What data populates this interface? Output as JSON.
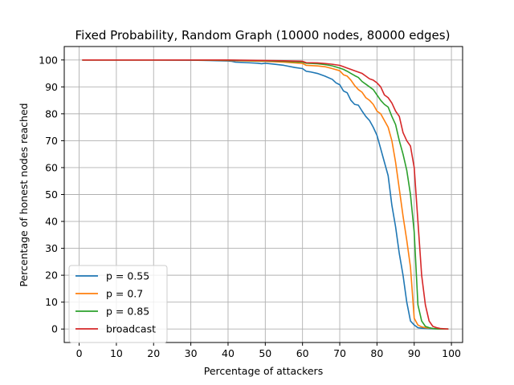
{
  "chart_data": {
    "type": "line",
    "title": "Fixed Probability, Random Graph (10000 nodes, 80000 edges)",
    "xlabel": "Percentage of attackers",
    "ylabel": "Percentage of honest nodes reached",
    "xlim": [
      -4,
      103
    ],
    "ylim": [
      -5,
      105
    ],
    "xticks": [
      0,
      10,
      20,
      30,
      40,
      50,
      60,
      70,
      80,
      90,
      100
    ],
    "yticks": [
      0,
      10,
      20,
      30,
      40,
      50,
      60,
      70,
      80,
      90,
      100
    ],
    "grid": true,
    "legend_position": "lower-left",
    "series": [
      {
        "name": "p = 0.55",
        "color": "#1f77b4",
        "x": [
          1,
          10,
          20,
          30,
          35,
          40,
          41,
          42,
          45,
          48,
          49,
          50,
          52,
          55,
          58,
          60,
          61,
          62,
          64,
          66,
          68,
          69,
          70,
          71,
          72,
          73,
          74,
          75,
          76,
          77,
          78,
          79,
          80,
          81,
          82,
          83,
          84,
          85,
          86,
          87,
          88,
          89,
          90,
          91,
          92,
          93,
          95,
          97,
          99
        ],
        "y": [
          100,
          100,
          100,
          99.9,
          99.8,
          99.6,
          99.5,
          99.2,
          99.0,
          98.8,
          98.6,
          98.8,
          98.5,
          98.0,
          97.2,
          96.8,
          95.8,
          95.6,
          95.0,
          94.0,
          92.8,
          91.5,
          90.8,
          88.5,
          87.8,
          85.0,
          83.5,
          83.2,
          81.0,
          79.0,
          77.5,
          75.0,
          72.0,
          67.0,
          62.0,
          57.0,
          46.0,
          38.0,
          28.0,
          20.0,
          10.0,
          3.0,
          1.5,
          0.5,
          0.3,
          0.2,
          0.1,
          0,
          0
        ]
      },
      {
        "name": "p = 0.7",
        "color": "#ff7f0e",
        "x": [
          1,
          10,
          20,
          30,
          40,
          50,
          55,
          60,
          61,
          64,
          66,
          68,
          70,
          71,
          72,
          73,
          74,
          75,
          76,
          77,
          78,
          79,
          80,
          81,
          82,
          83,
          84,
          85,
          86,
          87,
          88,
          89,
          90,
          91,
          92,
          93,
          95,
          97,
          99
        ],
        "y": [
          100,
          100,
          100,
          100,
          99.8,
          99.5,
          99.2,
          98.7,
          98.0,
          97.8,
          97.5,
          96.8,
          96.0,
          94.5,
          94.0,
          92.5,
          90.5,
          89.0,
          88.0,
          86.0,
          85.0,
          83.5,
          81.0,
          80.0,
          77.5,
          75.0,
          70.0,
          62.0,
          52.0,
          42.0,
          33.0,
          23.0,
          4.0,
          1.5,
          0.8,
          0.5,
          0.2,
          0,
          0
        ]
      },
      {
        "name": "p = 0.85",
        "color": "#2ca02c",
        "x": [
          1,
          10,
          20,
          30,
          40,
          50,
          55,
          60,
          61,
          64,
          66,
          68,
          70,
          71,
          72,
          73,
          74,
          75,
          76,
          77,
          78,
          79,
          80,
          81,
          82,
          83,
          84,
          85,
          86,
          87,
          88,
          89,
          90,
          91,
          92,
          93,
          94,
          95,
          97,
          99
        ],
        "y": [
          100,
          100,
          100,
          100,
          99.9,
          99.7,
          99.5,
          99.2,
          98.8,
          98.6,
          98.3,
          97.8,
          97.0,
          96.5,
          95.8,
          95.0,
          94.2,
          93.5,
          92.0,
          91.0,
          90.0,
          89.0,
          87.0,
          85.0,
          83.5,
          82.5,
          79.0,
          76.0,
          70.0,
          65.0,
          59.0,
          50.0,
          36.0,
          9.0,
          3.0,
          1.0,
          0.5,
          0.2,
          0,
          0
        ]
      },
      {
        "name": "broadcast",
        "color": "#d62728",
        "x": [
          1,
          10,
          20,
          30,
          40,
          50,
          55,
          60,
          61,
          64,
          66,
          68,
          70,
          71,
          72,
          73,
          74,
          75,
          76,
          77,
          78,
          79,
          80,
          81,
          82,
          83,
          84,
          85,
          86,
          87,
          88,
          89,
          90,
          91,
          92,
          93,
          94,
          95,
          96,
          97,
          99
        ],
        "y": [
          100,
          100,
          100,
          100,
          100,
          99.8,
          99.7,
          99.5,
          99.0,
          98.9,
          98.7,
          98.4,
          98.0,
          97.5,
          97.0,
          96.5,
          96.0,
          95.5,
          95.0,
          94.0,
          93.0,
          92.5,
          91.5,
          90.0,
          87.0,
          86.0,
          84.0,
          81.0,
          79.0,
          73.0,
          70.0,
          68.0,
          60.0,
          40.0,
          20.0,
          9.0,
          3.0,
          1.0,
          0.5,
          0.2,
          0
        ]
      }
    ]
  }
}
